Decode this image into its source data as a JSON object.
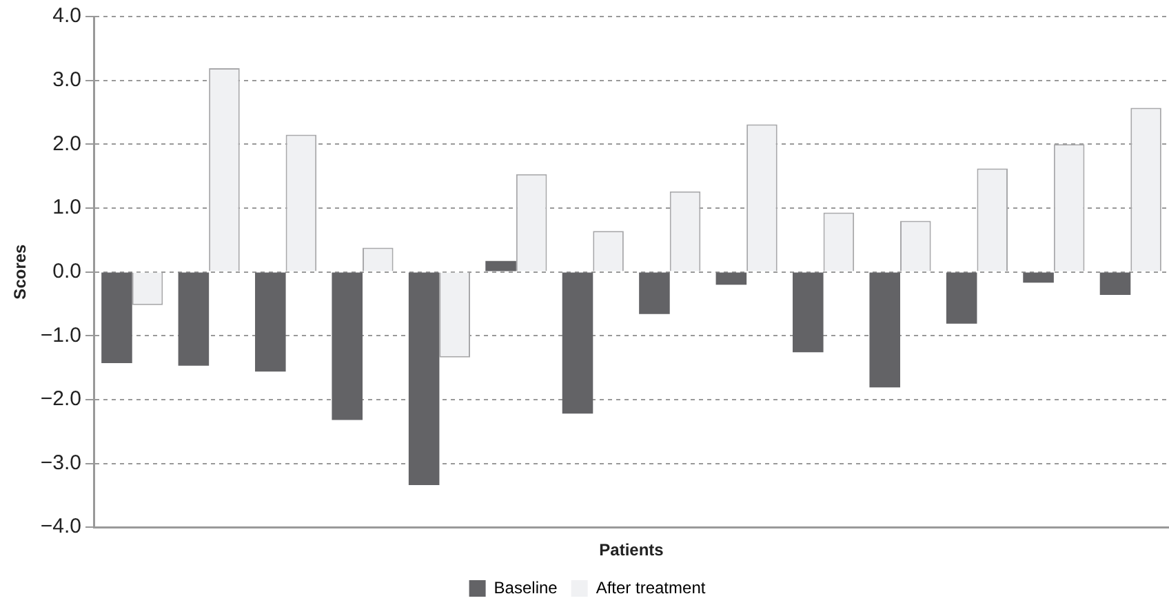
{
  "chart_data": {
    "type": "bar",
    "xlabel": "Patients",
    "ylabel": "Scores",
    "categories": [
      null,
      null,
      null,
      null,
      null,
      null,
      null,
      null,
      null,
      null,
      null,
      null,
      null,
      null
    ],
    "series": [
      {
        "name": "Baseline",
        "color": "#636366",
        "values": [
          -1.43,
          -1.47,
          -1.56,
          -2.32,
          -3.34,
          0.17,
          -2.22,
          -0.66,
          -0.2,
          -1.26,
          -1.81,
          -0.81,
          -0.17,
          -0.36
        ]
      },
      {
        "name": "After treatment",
        "color": "#f0f1f3",
        "values": [
          -0.52,
          3.19,
          2.15,
          0.38,
          -1.34,
          1.53,
          0.64,
          1.26,
          2.31,
          0.93,
          0.8,
          1.62,
          2.0,
          2.57
        ]
      }
    ],
    "ylim": [
      -4,
      4
    ],
    "yticks": [
      {
        "value": -4,
        "label": "−4.0"
      },
      {
        "value": -3,
        "label": "−3.0"
      },
      {
        "value": -2,
        "label": "−2.0"
      },
      {
        "value": -1,
        "label": "−1.0"
      },
      {
        "value": 0,
        "label": "0.0"
      },
      {
        "value": 1,
        "label": "1.0"
      },
      {
        "value": 2,
        "label": "2.0"
      },
      {
        "value": 3,
        "label": "3.0"
      },
      {
        "value": 4,
        "label": "4.0"
      }
    ],
    "grid": "y",
    "legend": "bottom",
    "tick_labels": "y"
  }
}
